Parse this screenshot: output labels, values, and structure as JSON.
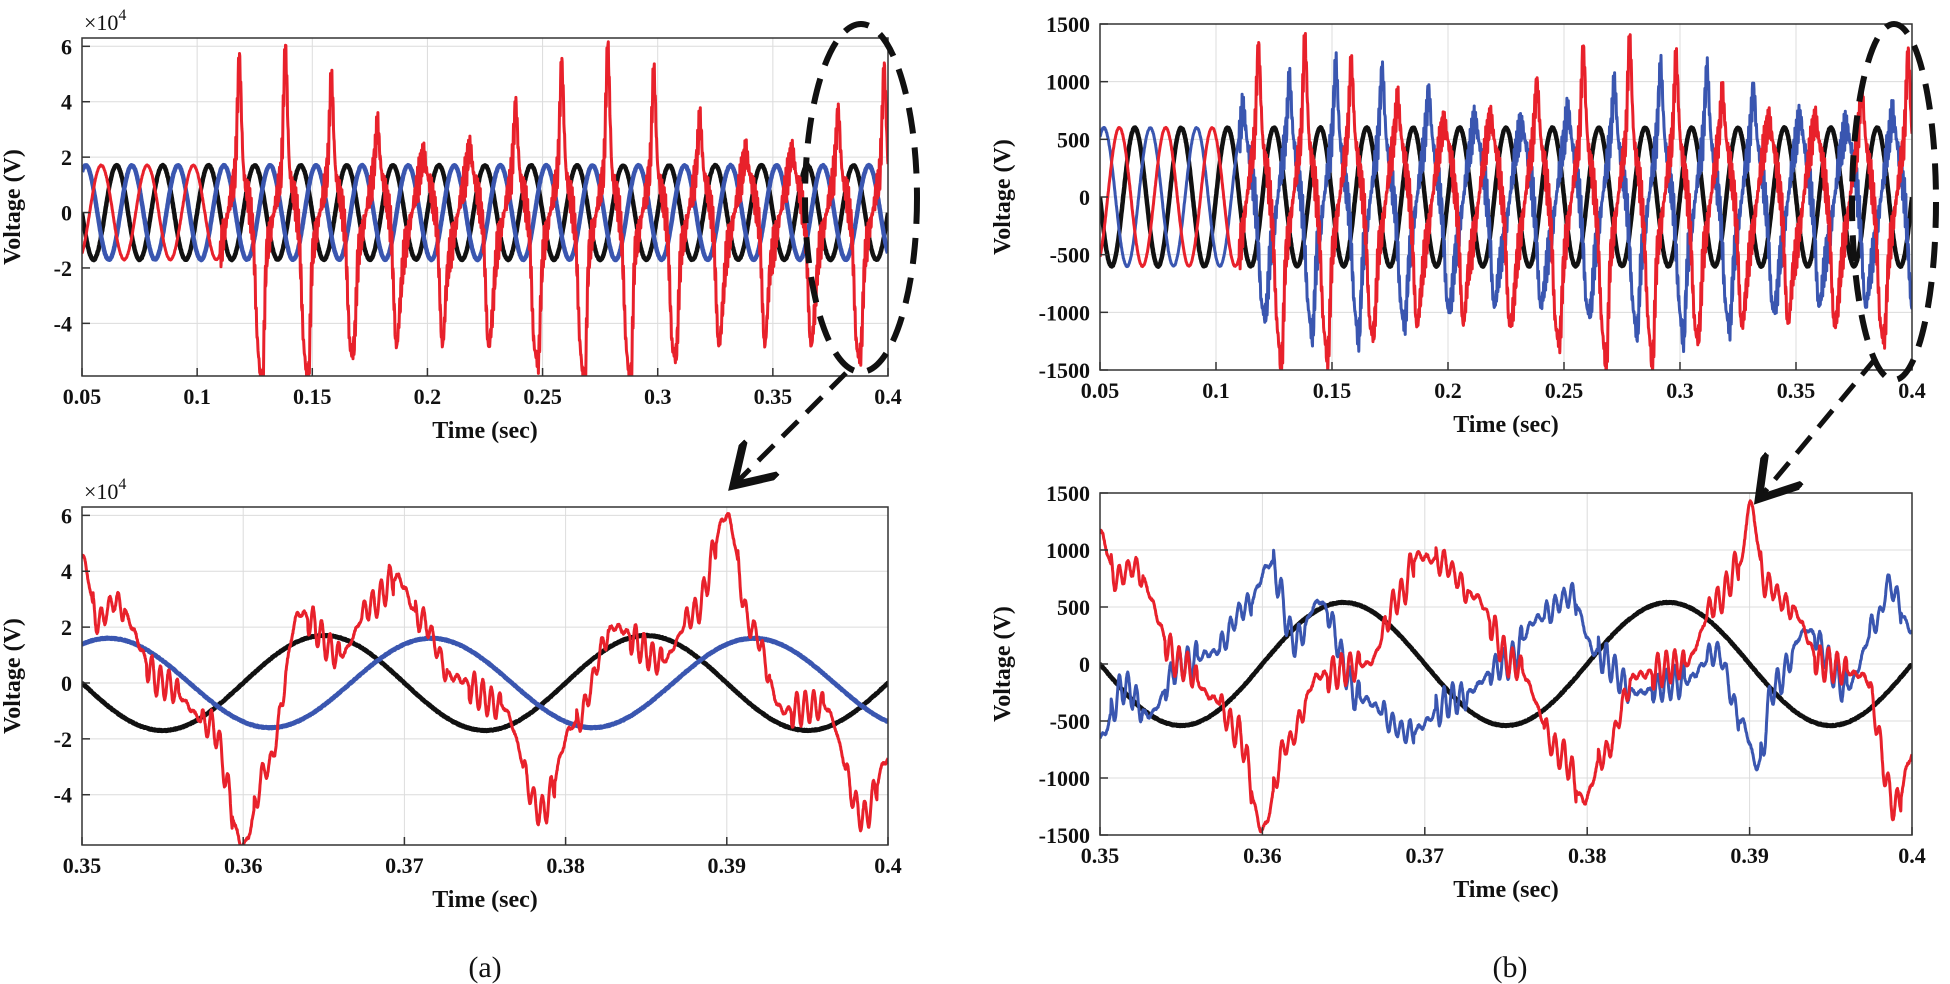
{
  "figure": {
    "captions": [
      "(a)",
      "(b)"
    ],
    "colors": {
      "black": "#111111",
      "red": "#e8212b",
      "blue": "#3a56b0"
    }
  },
  "chart_data": [
    {
      "type": "line",
      "panel": "a-top",
      "xlabel": "Time (sec)",
      "ylabel": "Voltage (V)",
      "multiplier": "×10^4",
      "xlim": [
        0.05,
        0.4
      ],
      "ylim": [
        -5.9,
        6.3
      ],
      "xticks": [
        0.05,
        0.1,
        0.15,
        0.2,
        0.25,
        0.3,
        0.35,
        0.4
      ],
      "xtick_labels": [
        "0.05",
        "0.1",
        "0.15",
        "0.2",
        "0.25",
        "0.3",
        "0.35",
        "0.4"
      ],
      "yticks": [
        -4,
        -2,
        0,
        2,
        4,
        6
      ],
      "ytick_labels": [
        "-4",
        "-2",
        "0",
        "2",
        "4",
        "6"
      ],
      "grid": true,
      "series": [
        {
          "color": "#111111",
          "amplitude": 1.7,
          "phase_deg": 0,
          "distorted": false
        },
        {
          "color": "#3a56b0",
          "amplitude": 1.7,
          "phase_deg": 120,
          "distorted": false
        },
        {
          "color": "#e8212b",
          "amplitude": 1.7,
          "phase_deg": 240,
          "distorted": true,
          "disturbance_start": 0.11,
          "peak": 6.0
        }
      ]
    },
    {
      "type": "line",
      "panel": "b-top",
      "xlabel": "Time (sec)",
      "ylabel": "Voltage (V)",
      "xlim": [
        0.05,
        0.4
      ],
      "ylim": [
        -1500,
        1500
      ],
      "xticks": [
        0.05,
        0.1,
        0.15,
        0.2,
        0.25,
        0.3,
        0.35,
        0.4
      ],
      "xtick_labels": [
        "0.05",
        "0.1",
        "0.15",
        "0.2",
        "0.25",
        "0.3",
        "0.35",
        "0.4"
      ],
      "yticks": [
        -1500,
        -1000,
        -500,
        0,
        500,
        1000,
        1500
      ],
      "ytick_labels": [
        "-1500",
        "-1000",
        "-500",
        "0",
        "500",
        "1000",
        "1500"
      ],
      "grid": true,
      "series": [
        {
          "color": "#111111",
          "amplitude": 600,
          "phase_deg": 0,
          "distorted": false
        },
        {
          "color": "#3a56b0",
          "amplitude": 600,
          "phase_deg": 120,
          "distorted": true,
          "disturbance_start": 0.11
        },
        {
          "color": "#e8212b",
          "amplitude": 600,
          "phase_deg": 240,
          "distorted": true,
          "disturbance_start": 0.11,
          "peak": 1400
        }
      ]
    },
    {
      "type": "line",
      "panel": "a-bottom",
      "xlabel": "Time (sec)",
      "ylabel": "Voltage (V)",
      "multiplier": "×10^4",
      "xlim": [
        0.35,
        0.4
      ],
      "ylim": [
        -5.8,
        6.3
      ],
      "xticks": [
        0.35,
        0.36,
        0.37,
        0.38,
        0.39,
        0.4
      ],
      "xtick_labels": [
        "0.35",
        "0.36",
        "0.37",
        "0.38",
        "0.39",
        "0.4"
      ],
      "yticks": [
        -4,
        -2,
        0,
        2,
        4,
        6
      ],
      "ytick_labels": [
        "-4",
        "-2",
        "0",
        "2",
        "4",
        "6"
      ],
      "grid": true,
      "series": [
        {
          "color": "#111111",
          "amplitude": 1.7,
          "phase_deg": 0,
          "distorted": false
        },
        {
          "color": "#3a56b0",
          "amplitude": 1.6,
          "phase_deg": 120,
          "distorted": false
        },
        {
          "color": "#e8212b",
          "distorted": true,
          "keypoints": [
            [
              0.35,
              4.5
            ],
            [
              0.351,
              2.2
            ],
            [
              0.352,
              2.9
            ],
            [
              0.355,
              0
            ],
            [
              0.358,
              -1.5
            ],
            [
              0.36,
              -5.8
            ],
            [
              0.3615,
              -3
            ],
            [
              0.3635,
              2.5
            ],
            [
              0.366,
              1
            ],
            [
              0.368,
              2.8
            ],
            [
              0.3695,
              3.8
            ],
            [
              0.371,
              2.3
            ],
            [
              0.373,
              0.2
            ],
            [
              0.376,
              -0.8
            ],
            [
              0.3785,
              -4.6
            ],
            [
              0.3805,
              -1.5
            ],
            [
              0.383,
              2
            ],
            [
              0.386,
              0.8
            ],
            [
              0.388,
              2.5
            ],
            [
              0.39,
              6.0
            ],
            [
              0.3915,
              2
            ],
            [
              0.3935,
              -1
            ],
            [
              0.396,
              -0.8
            ],
            [
              0.3985,
              -4.8
            ],
            [
              0.4,
              -2.7
            ]
          ]
        }
      ]
    },
    {
      "type": "line",
      "panel": "b-bottom",
      "xlabel": "Time (sec)",
      "ylabel": "Voltage (V)",
      "xlim": [
        0.35,
        0.4
      ],
      "ylim": [
        -1500,
        1500
      ],
      "xticks": [
        0.35,
        0.36,
        0.37,
        0.38,
        0.39,
        0.4
      ],
      "xtick_labels": [
        "0.35",
        "0.36",
        "0.37",
        "0.38",
        "0.39",
        "0.4"
      ],
      "yticks": [
        -1500,
        -1000,
        -500,
        0,
        500,
        1000,
        1500
      ],
      "ytick_labels": [
        "-1500",
        "-1000",
        "-500",
        "0",
        "500",
        "1000",
        "1500"
      ],
      "grid": true,
      "series": [
        {
          "color": "#111111",
          "amplitude": 540,
          "phase_deg": 0,
          "distorted": false
        },
        {
          "color": "#3a56b0",
          "distorted": true,
          "keypoints": [
            [
              0.35,
              -650
            ],
            [
              0.3515,
              -200
            ],
            [
              0.353,
              -450
            ],
            [
              0.355,
              0
            ],
            [
              0.357,
              100
            ],
            [
              0.359,
              500
            ],
            [
              0.3605,
              880
            ],
            [
              0.362,
              200
            ],
            [
              0.3635,
              550
            ],
            [
              0.366,
              -300
            ],
            [
              0.369,
              -600
            ],
            [
              0.372,
              -300
            ],
            [
              0.375,
              0
            ],
            [
              0.377,
              400
            ],
            [
              0.379,
              600
            ],
            [
              0.3805,
              100
            ],
            [
              0.383,
              -250
            ],
            [
              0.386,
              -150
            ],
            [
              0.388,
              100
            ],
            [
              0.3895,
              -500
            ],
            [
              0.3905,
              -900
            ],
            [
              0.3915,
              -200
            ],
            [
              0.3935,
              300
            ],
            [
              0.396,
              -200
            ],
            [
              0.398,
              400
            ],
            [
              0.3985,
              700
            ],
            [
              0.4,
              300
            ]
          ]
        },
        {
          "color": "#e8212b",
          "distorted": true,
          "keypoints": [
            [
              0.35,
              1150
            ],
            [
              0.351,
              750
            ],
            [
              0.352,
              850
            ],
            [
              0.355,
              0
            ],
            [
              0.357,
              -300
            ],
            [
              0.3585,
              -600
            ],
            [
              0.36,
              -1450
            ],
            [
              0.3615,
              -700
            ],
            [
              0.3635,
              -100
            ],
            [
              0.3665,
              0
            ],
            [
              0.3685,
              600
            ],
            [
              0.3695,
              950
            ],
            [
              0.371,
              900
            ],
            [
              0.373,
              600
            ],
            [
              0.3755,
              0
            ],
            [
              0.3785,
              -800
            ],
            [
              0.3798,
              -1200
            ],
            [
              0.381,
              -800
            ],
            [
              0.383,
              -100
            ],
            [
              0.386,
              0
            ],
            [
              0.388,
              550
            ],
            [
              0.3895,
              900
            ],
            [
              0.39,
              1420
            ],
            [
              0.391,
              700
            ],
            [
              0.3925,
              500
            ],
            [
              0.3945,
              0
            ],
            [
              0.397,
              -100
            ],
            [
              0.399,
              -1250
            ],
            [
              0.4,
              -800
            ]
          ]
        }
      ]
    }
  ]
}
